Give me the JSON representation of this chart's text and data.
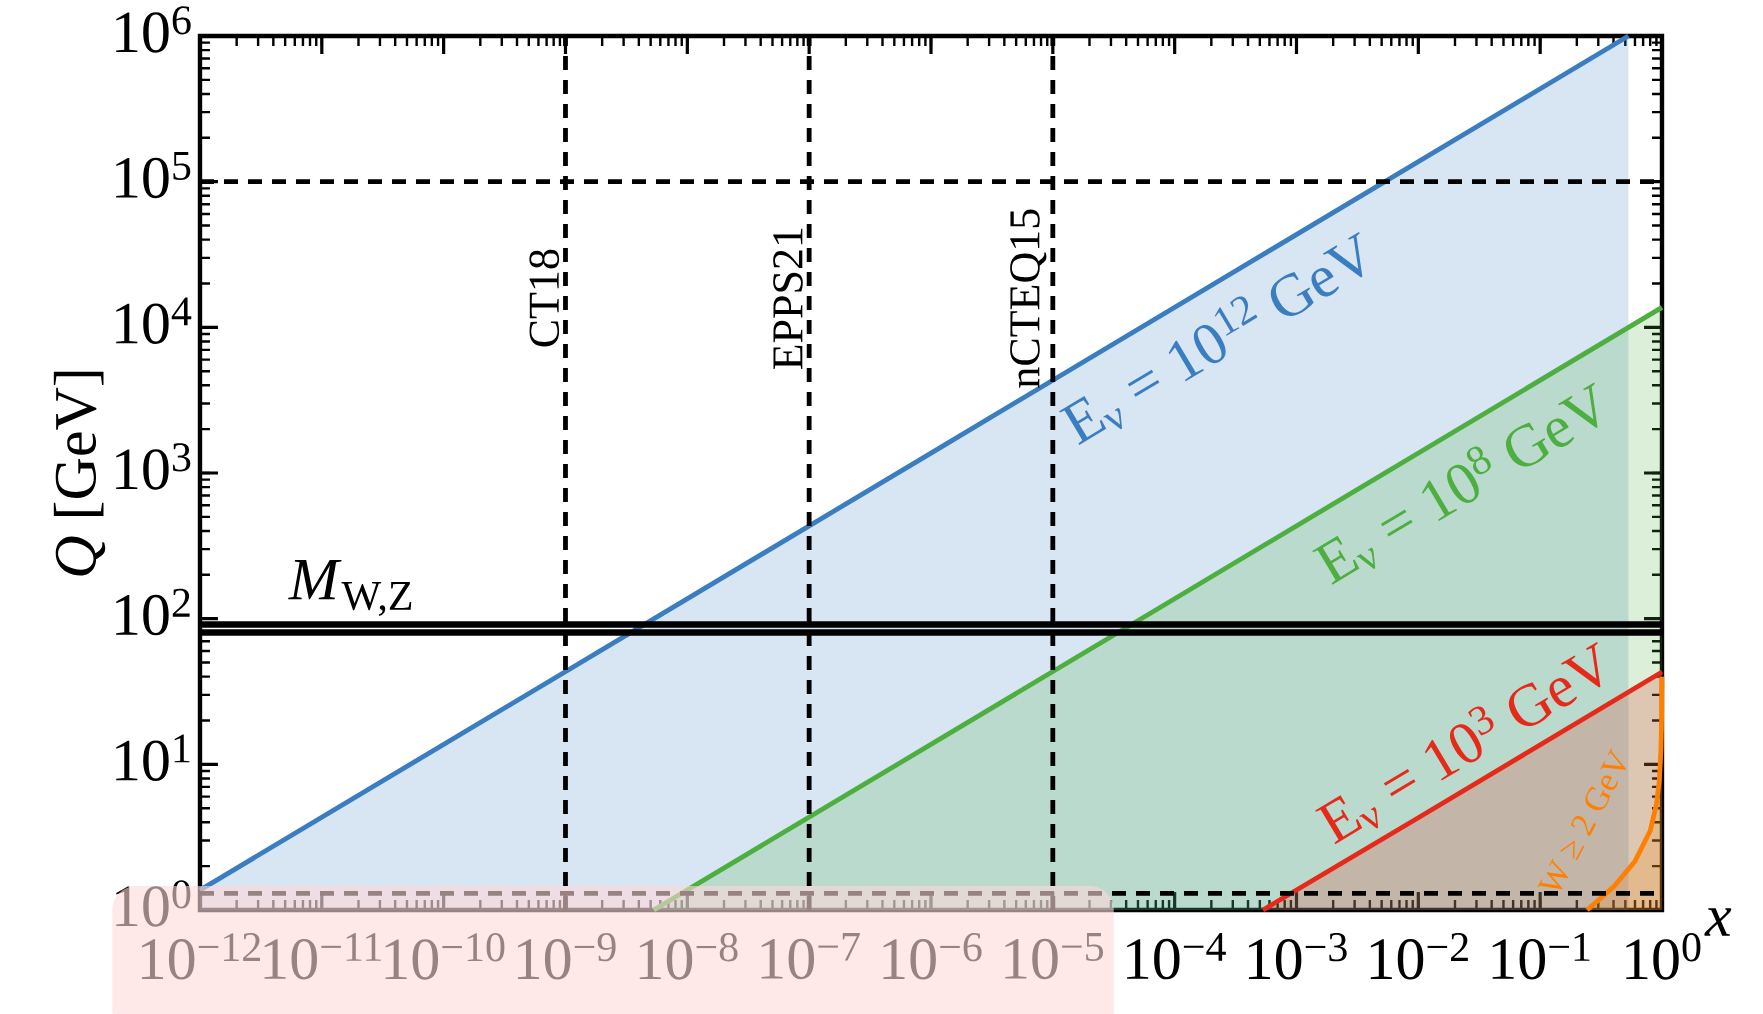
{
  "chart_data": {
    "type": "area",
    "xlabel": "x",
    "ylabel": "*Q* [GeV]",
    "log": "xy",
    "xlim": [
      1e-12,
      1
    ],
    "ylim": [
      1,
      1000000
    ],
    "xticks": [
      {
        "value": 1e-12,
        "label": "10$^{−12}$"
      },
      {
        "value": 1e-11,
        "label": "10$^{−11}$"
      },
      {
        "value": 1e-10,
        "label": "10$^{−10}$"
      },
      {
        "value": 1e-09,
        "label": "10$^{−9}$"
      },
      {
        "value": 1e-08,
        "label": "10$^{−8}$"
      },
      {
        "value": 1e-07,
        "label": "10$^{−7}$"
      },
      {
        "value": 1e-06,
        "label": "10$^{−6}$"
      },
      {
        "value": 1e-05,
        "label": "10$^{−5}$"
      },
      {
        "value": 0.0001,
        "label": "10$^{−4}$"
      },
      {
        "value": 0.001,
        "label": "10$^{−3}$"
      },
      {
        "value": 0.01,
        "label": "10$^{−2}$"
      },
      {
        "value": 0.1,
        "label": "10$^{−1}$"
      },
      {
        "value": 1,
        "label": "10$^{0}$"
      }
    ],
    "yticks": [
      {
        "value": 1,
        "label": "10$^{0}$"
      },
      {
        "value": 10,
        "label": "10$^{1}$"
      },
      {
        "value": 100,
        "label": "10$^{2}$"
      },
      {
        "value": 1000,
        "label": "10$^{3}$"
      },
      {
        "value": 10000,
        "label": "10$^{4}$"
      },
      {
        "value": 100000,
        "label": "10$^{5}$"
      },
      {
        "value": 1000000,
        "label": "10$^{6}$"
      }
    ],
    "series": [
      {
        "color": "#3a7dc0",
        "x": [
          1e-12,
          1e-06,
          0.53
        ],
        "values": [
          1.37,
          1370,
          1000000
        ]
      },
      {
        "color": "#4caf3f",
        "x": [
          5.3e-09,
          0.0001,
          1
        ],
        "values": [
          1,
          137,
          13700
        ]
      },
      {
        "color": "#e62a1a",
        "x": [
          0.00053,
          0.01,
          1
        ],
        "values": [
          1,
          4.3,
          43
        ]
      },
      {
        "color": "#ff8000",
        "x": [
          0.243,
          0.4,
          0.6,
          0.8,
          0.9,
          0.95,
          0.98,
          0.99,
          0.995,
          0.998
        ],
        "values": [
          1,
          1.44,
          2.16,
          3.5,
          5.3,
          7.7,
          12.4,
          17.6,
          25,
          40
        ]
      }
    ],
    "ref_lines": [
      {
        "axis": "x",
        "value": 1e-09,
        "label": "CT18",
        "line_style": "dashed",
        "color": "#000000"
      },
      {
        "axis": "x",
        "value": 1e-07,
        "label": "EPPS21",
        "line_style": "dashed",
        "color": "#000000"
      },
      {
        "axis": "x",
        "value": 1e-05,
        "label": "nCTEQ15",
        "line_style": "dashed",
        "color": "#000000"
      },
      {
        "axis": "y",
        "value": 100000,
        "line_style": "dashed",
        "color": "#000000"
      },
      {
        "axis": "y",
        "value": 1.3,
        "line_style": "dashed",
        "color": "#000000"
      },
      {
        "axis": "y",
        "value": 80.4,
        "line_style": "solid",
        "color": "#000000"
      },
      {
        "axis": "y",
        "value": 91.2,
        "line_style": "solid",
        "color": "#000000",
        "label": "*M*$_{W,Z}$"
      }
    ],
    "annotations": [
      "E$_{ν}$ = 10$^{12}$ GeV",
      "E$_{ν}$ = 10$^{8}$ GeV",
      "E$_{ν}$ = 10$^{3}$ GeV",
      "W ≥ 2 GeV"
    ]
  }
}
